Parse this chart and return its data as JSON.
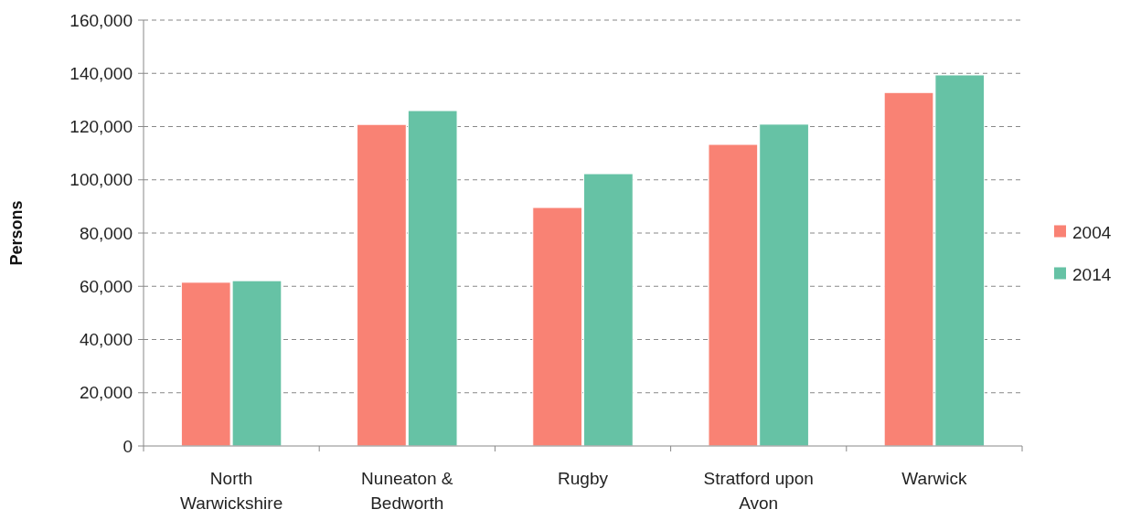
{
  "chart_data": {
    "type": "bar",
    "ylabel": "Persons",
    "categories": [
      "North Warwickshire",
      "Nuneaton & Bedworth",
      "Rugby",
      "Stratford upon Avon",
      "Warwick"
    ],
    "series": [
      {
        "name": "2004",
        "color": "#f98274",
        "values": [
          61500,
          120800,
          89600,
          113300,
          132800
        ]
      },
      {
        "name": "2014",
        "color": "#66c2a5",
        "values": [
          62100,
          126000,
          102300,
          120900,
          139400
        ]
      }
    ],
    "ylim": [
      0,
      160000
    ],
    "yticks": [
      {
        "value": 0,
        "label": "0"
      },
      {
        "value": 20000,
        "label": "20,000"
      },
      {
        "value": 40000,
        "label": "40,000"
      },
      {
        "value": 60000,
        "label": "60,000"
      },
      {
        "value": 80000,
        "label": "80,000"
      },
      {
        "value": 100000,
        "label": "100,000"
      },
      {
        "value": 120000,
        "label": "120,000"
      },
      {
        "value": 140000,
        "label": "140,000"
      },
      {
        "value": 160000,
        "label": "160,000"
      }
    ],
    "grid": "y",
    "legend": "right"
  }
}
